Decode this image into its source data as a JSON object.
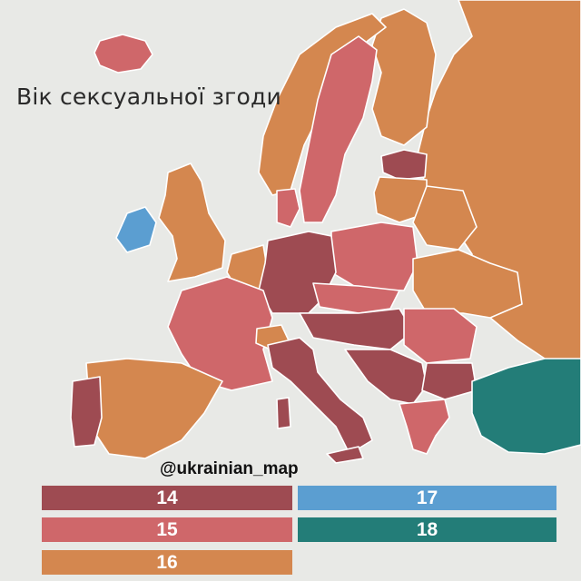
{
  "title": "Вік сексуальної згоди",
  "watermark": "@ukrainian_map",
  "colors": {
    "age_14": "#9e4b52",
    "age_15": "#cf676a",
    "age_16": "#d4874f",
    "age_17": "#5b9ed1",
    "age_18": "#237d78",
    "sea": "#e8e9e6"
  },
  "legend": [
    {
      "value": "14",
      "color": "#9e4b52"
    },
    {
      "value": "17",
      "color": "#5b9ed1"
    },
    {
      "value": "15",
      "color": "#cf676a"
    },
    {
      "value": "18",
      "color": "#237d78"
    },
    {
      "value": "16",
      "color": "#d4874f"
    }
  ]
}
